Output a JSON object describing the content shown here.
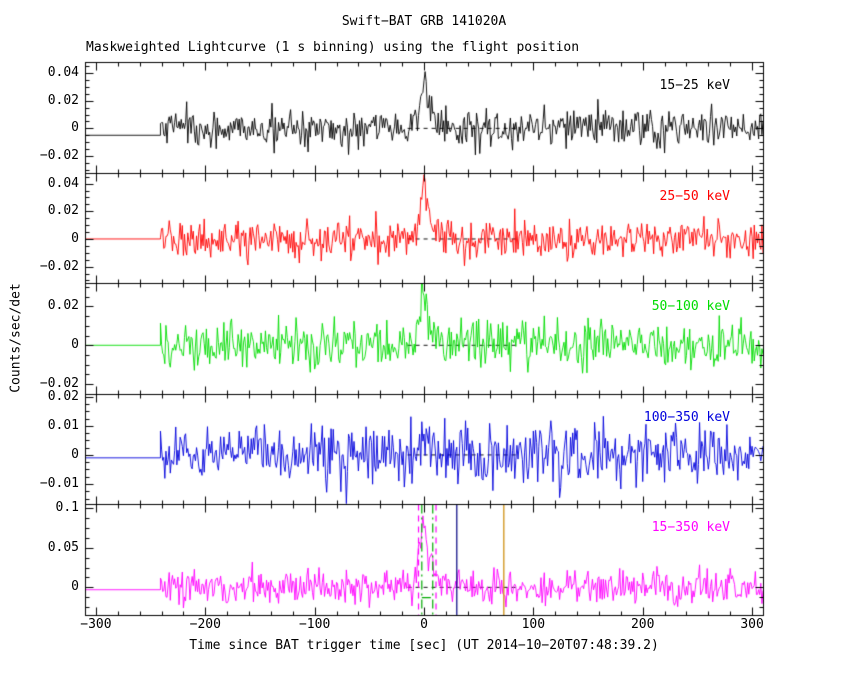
{
  "chart_data": {
    "type": "line",
    "title": "Swift−BAT GRB 141020A",
    "subtitle": "Maskweighted Lightcurve (1 s binning) using the flight position",
    "xlabel": "Time since BAT trigger time [sec] (UT 2014−10−20T07:48:39.2)",
    "ylabel": "Counts/sec/det",
    "xlim": [
      -310,
      310
    ],
    "x_ticks": [
      -300,
      -200,
      -100,
      0,
      100,
      200,
      300
    ],
    "x_minor_step": 20,
    "bin_seconds": 1,
    "data_start": -241,
    "data_end": 310,
    "pre_segment": {
      "t_start": -310,
      "t_end": -241
    },
    "burst": {
      "t_peak": 0,
      "rise_sigma": 4,
      "decay_tau": 7
    },
    "background_fit_dash": {
      "t1": -15,
      "t2": 85
    },
    "grid": false,
    "legend_position": "panel-upper-right",
    "panels": [
      {
        "name": "15−25 keV",
        "color": "#000000",
        "ylim": [
          -0.032,
          0.048
        ],
        "yticks": [
          -0.02,
          0,
          0.02,
          0.04
        ],
        "noise_sigma": 0.007,
        "burst_amp": 0.034,
        "pre_value": -0.005
      },
      {
        "name": "25−50 keV",
        "color": "#ff0000",
        "ylim": [
          -0.032,
          0.048
        ],
        "yticks": [
          -0.02,
          0,
          0.02,
          0.04
        ],
        "noise_sigma": 0.0068,
        "burst_amp": 0.036,
        "pre_value": 0
      },
      {
        "name": "50−100 keV",
        "color": "#00dd00",
        "ylim": [
          -0.025,
          0.032
        ],
        "yticks": [
          -0.02,
          0,
          0.02
        ],
        "noise_sigma": 0.006,
        "burst_amp": 0.027,
        "pre_value": 0
      },
      {
        "name": "100−350 keV",
        "color": "#0000dd",
        "ylim": [
          -0.017,
          0.021
        ],
        "yticks": [
          -0.01,
          0,
          0.01,
          0.02
        ],
        "noise_sigma": 0.005,
        "burst_amp": 0.006,
        "pre_value": -0.001
      },
      {
        "name": "15−350 keV",
        "color": "#ff00ff",
        "ylim": [
          -0.035,
          0.105
        ],
        "yticks": [
          0,
          0.05,
          0.1
        ],
        "noise_sigma": 0.011,
        "burst_amp": 0.09,
        "pre_value": -0.003
      }
    ],
    "markers": {
      "panel_index": 4,
      "vlines": [
        {
          "t": -5,
          "color": "#ff00ff",
          "style": "dashed"
        },
        {
          "t": 11,
          "color": "#ff00ff",
          "style": "dashed"
        },
        {
          "t": -2,
          "color": "#00aa00",
          "style": "dashdot"
        },
        {
          "t": 8,
          "color": "#00aa00",
          "style": "dashdot"
        },
        {
          "t": 30,
          "color": "#000080",
          "style": "solid"
        },
        {
          "t": 73,
          "color": "#cc8800",
          "style": "solid"
        }
      ],
      "hlines": [
        {
          "y": -0.013,
          "t1": -2,
          "t2": 8,
          "color": "#00aa00",
          "style": "dashdot"
        }
      ]
    }
  }
}
